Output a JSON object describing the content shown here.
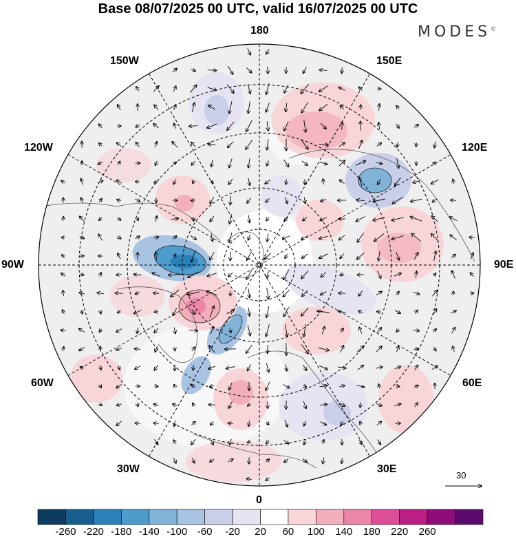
{
  "title": "Base 08/07/2025 00 UTC, valid 16/07/2025 00 UTC",
  "brand": "MODES",
  "brand_mark": "©",
  "lon_labels": {
    "top": "180",
    "bottom": "0",
    "left": "90W",
    "right": "90E",
    "nw1": "150W",
    "nw2": "120W",
    "ne1": "150E",
    "ne2": "120E",
    "sw1": "60W",
    "sw2": "30W",
    "se1": "60E",
    "se2": "30E"
  },
  "wind_scale_label": "30",
  "colorbar": {
    "labels": [
      "-260",
      "-220",
      "-180",
      "-140",
      "-100",
      "-60",
      "-20",
      "20",
      "60",
      "100",
      "140",
      "180",
      "220",
      "260"
    ],
    "colors": [
      "#0d3d5e",
      "#165f8f",
      "#2a80b8",
      "#4d9ccb",
      "#7fb3d8",
      "#a9c3e2",
      "#c9cfe8",
      "#e6e4f2",
      "#ffffff",
      "#f8d5d8",
      "#f2aebd",
      "#ec86a9",
      "#dd4f99",
      "#bb1f84",
      "#8e0b7c",
      "#5c0a6b"
    ]
  },
  "icons": {
    "wind_arrow": "arrow-icon"
  }
}
